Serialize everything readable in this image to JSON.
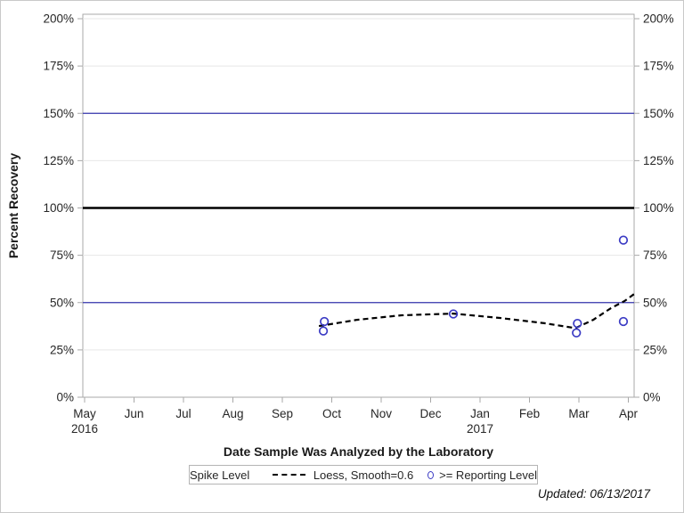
{
  "figure": {
    "updated_note": "Updated: 06/13/2017"
  },
  "chart_data": {
    "type": "scatter",
    "title": "",
    "xlabel": "Date Sample Was Analyzed by the Laboratory",
    "ylabel": "Percent Recovery",
    "x_axis": {
      "unit": "months (0 = May 2016 tick)",
      "ticks": [
        {
          "m": "May",
          "y": "2016"
        },
        {
          "m": "Jun"
        },
        {
          "m": "Jul"
        },
        {
          "m": "Aug"
        },
        {
          "m": "Sep"
        },
        {
          "m": "Oct"
        },
        {
          "m": "Nov"
        },
        {
          "m": "Dec"
        },
        {
          "m": "Jan",
          "y": "2017"
        },
        {
          "m": "Feb"
        },
        {
          "m": "Mar"
        },
        {
          "m": "Apr"
        }
      ]
    },
    "y_axis": {
      "min": 0,
      "max": 200,
      "step": 25,
      "suffix": "%",
      "mirrored_right": true,
      "grid": true
    },
    "reference_lines": [
      {
        "value": 150,
        "color": "#3434ad",
        "width": 1.2,
        "name": "upper-reference-150"
      },
      {
        "value": 100,
        "color": "#000000",
        "width": 2.6,
        "name": "spike-level-100"
      },
      {
        "value": 50,
        "color": "#3434ad",
        "width": 1.2,
        "name": "lower-reference-50"
      }
    ],
    "series": [
      {
        "name": ">= Reporting Level",
        "type": "scatter",
        "marker": "open-circle",
        "color": "#3b3bc4",
        "points": [
          {
            "x": 4.85,
            "pct": 40,
            "date_est": "2016-09-26"
          },
          {
            "x": 4.83,
            "pct": 35,
            "date_est": "2016-09-26"
          },
          {
            "x": 7.46,
            "pct": 44,
            "date_est": "2016-12-14"
          },
          {
            "x": 9.97,
            "pct": 39,
            "date_est": "2017-03-01"
          },
          {
            "x": 9.95,
            "pct": 34,
            "date_est": "2017-03-01"
          },
          {
            "x": 10.9,
            "pct": 83,
            "date_est": "2017-03-29"
          },
          {
            "x": 10.9,
            "pct": 40,
            "date_est": "2017-03-29"
          }
        ]
      },
      {
        "name": "Loess, Smooth=0.6",
        "type": "line",
        "style": "dashed",
        "color": "#000000",
        "points": [
          {
            "x": 4.74,
            "pct": 37.6
          },
          {
            "x": 5.51,
            "pct": 40.9
          },
          {
            "x": 6.41,
            "pct": 43.3
          },
          {
            "x": 7.46,
            "pct": 44.2
          },
          {
            "x": 8.4,
            "pct": 41.9
          },
          {
            "x": 9.3,
            "pct": 39.1
          },
          {
            "x": 9.93,
            "pct": 36.5
          },
          {
            "x": 10.29,
            "pct": 40.9
          },
          {
            "x": 10.65,
            "pct": 47.1
          },
          {
            "x": 10.92,
            "pct": 50.8
          },
          {
            "x": 11.12,
            "pct": 54.6
          }
        ]
      }
    ],
    "legend": {
      "title": "Spike Level",
      "position": "bottom-center",
      "entries": [
        {
          "glyph": "dashed-line",
          "label": "Loess, Smooth=0.6"
        },
        {
          "glyph": "open-circle",
          "label": ">= Reporting Level"
        }
      ]
    }
  }
}
